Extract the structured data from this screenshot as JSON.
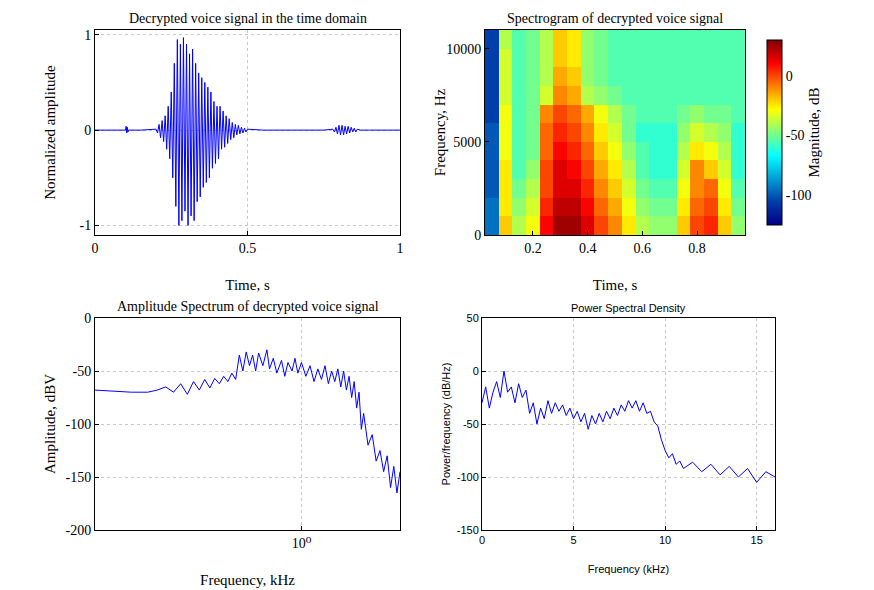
{
  "chart_data": [
    {
      "type": "line",
      "title": "Decrypted voice signal in the time domain",
      "x_label": "Time, s",
      "y_label": "Normalized amplitude",
      "xlim": [
        0,
        1
      ],
      "xticks": [
        0,
        0.5,
        1
      ],
      "ylim": [
        -1.1,
        1.05
      ],
      "yticks": [
        -1,
        0,
        1
      ],
      "grid": true,
      "series": [
        {
          "color": "#0000ff",
          "x": [
            0,
            0.05,
            0.1,
            0.102,
            0.104,
            0.106,
            0.108,
            0.11,
            0.15,
            0.2,
            0.205,
            0.21,
            0.215,
            0.22,
            0.225,
            0.23,
            0.235,
            0.24,
            0.245,
            0.25,
            0.255,
            0.26,
            0.265,
            0.27,
            0.275,
            0.28,
            0.285,
            0.29,
            0.295,
            0.3,
            0.305,
            0.31,
            0.315,
            0.32,
            0.325,
            0.33,
            0.335,
            0.34,
            0.345,
            0.35,
            0.355,
            0.36,
            0.365,
            0.37,
            0.375,
            0.38,
            0.385,
            0.39,
            0.395,
            0.4,
            0.405,
            0.41,
            0.415,
            0.42,
            0.425,
            0.43,
            0.435,
            0.44,
            0.445,
            0.45,
            0.455,
            0.46,
            0.465,
            0.47,
            0.475,
            0.48,
            0.485,
            0.49,
            0.495,
            0.5,
            0.55,
            0.6,
            0.65,
            0.7,
            0.75,
            0.78,
            0.785,
            0.79,
            0.795,
            0.8,
            0.805,
            0.81,
            0.815,
            0.82,
            0.825,
            0.83,
            0.835,
            0.84,
            0.845,
            0.85,
            0.855,
            0.86,
            0.87,
            0.9,
            0.95,
            1.0
          ],
          "values": [
            0,
            0,
            0,
            0.04,
            -0.03,
            0.03,
            -0.02,
            0,
            0,
            0.01,
            -0.03,
            0.06,
            -0.08,
            0.1,
            -0.12,
            0.15,
            -0.2,
            0.25,
            -0.3,
            0.4,
            -0.5,
            0.7,
            -0.8,
            0.95,
            -1.0,
            0.9,
            -0.95,
            0.97,
            -0.85,
            0.9,
            -1.0,
            0.8,
            -0.9,
            0.85,
            -0.95,
            0.7,
            -0.75,
            0.6,
            -0.7,
            0.55,
            -0.6,
            0.5,
            -0.55,
            0.45,
            -0.5,
            0.4,
            -0.4,
            0.3,
            -0.35,
            0.25,
            -0.3,
            0.25,
            -0.2,
            0.2,
            -0.18,
            0.15,
            -0.14,
            0.12,
            -0.1,
            0.08,
            -0.08,
            0.06,
            -0.05,
            0.05,
            -0.04,
            0.03,
            -0.03,
            0.02,
            -0.02,
            0.01,
            0,
            0,
            0,
            0,
            0,
            0.01,
            -0.02,
            0.03,
            -0.04,
            0.05,
            -0.05,
            0.05,
            -0.05,
            0.04,
            -0.04,
            0.04,
            -0.03,
            0.03,
            -0.02,
            0.02,
            -0.02,
            0.01,
            0,
            0,
            0,
            0
          ]
        }
      ]
    },
    {
      "type": "heatmap",
      "title": "Spectrogram of decrypted voice signal",
      "x_label": "Time, s",
      "y_label": "Frequency, Hz",
      "xlim": [
        0.025,
        0.975
      ],
      "xticks": [
        0.2,
        0.4,
        0.6,
        0.8
      ],
      "ylim": [
        0,
        11000
      ],
      "yticks": [
        0,
        5000,
        10000
      ],
      "grid": false,
      "colorbar_title": "Magnitude, dB",
      "zlim": [
        -125,
        30
      ],
      "zticks": [
        -100,
        -50,
        0
      ],
      "x": [
        0.05,
        0.1,
        0.15,
        0.2,
        0.25,
        0.3,
        0.35,
        0.4,
        0.45,
        0.5,
        0.55,
        0.6,
        0.65,
        0.7,
        0.75,
        0.8,
        0.85,
        0.9,
        0.95
      ],
      "y": [
        500,
        1500,
        2500,
        3500,
        4500,
        5500,
        6500,
        7500,
        8500,
        9500,
        10500
      ],
      "z": [
        [
          -95,
          -20,
          -40,
          -30,
          10,
          25,
          25,
          15,
          0,
          -10,
          -25,
          -40,
          -45,
          -45,
          -20,
          0,
          5,
          -20,
          -45
        ],
        [
          -95,
          -25,
          -45,
          -35,
          5,
          20,
          20,
          10,
          -5,
          -15,
          -30,
          -45,
          -50,
          -50,
          -25,
          -5,
          0,
          -25,
          -50
        ],
        [
          -100,
          -25,
          -50,
          -40,
          0,
          15,
          15,
          5,
          -10,
          -20,
          -35,
          -50,
          -55,
          -55,
          -30,
          -10,
          -5,
          -30,
          -55
        ],
        [
          -100,
          -25,
          -55,
          -45,
          0,
          15,
          10,
          0,
          -15,
          -25,
          -40,
          -55,
          -60,
          -60,
          -35,
          -10,
          -20,
          -35,
          -60
        ],
        [
          -100,
          -30,
          -55,
          -50,
          -5,
          10,
          5,
          -5,
          -20,
          -30,
          -45,
          -55,
          -60,
          -60,
          -40,
          -25,
          -30,
          -40,
          -60
        ],
        [
          -100,
          -30,
          -55,
          -50,
          -5,
          5,
          0,
          -10,
          -25,
          -35,
          -50,
          -60,
          -60,
          -60,
          -45,
          -35,
          -40,
          -45,
          -60
        ],
        [
          -105,
          -30,
          -55,
          -50,
          -10,
          0,
          -5,
          -15,
          -30,
          -40,
          -50,
          -55,
          -55,
          -55,
          -50,
          -45,
          -50,
          -50,
          -55
        ],
        [
          -105,
          -35,
          -55,
          -50,
          -35,
          -10,
          -15,
          -40,
          -45,
          -50,
          -55,
          -55,
          -55,
          -55,
          -55,
          -55,
          -55,
          -55,
          -55
        ],
        [
          -105,
          -35,
          -55,
          -50,
          -40,
          -15,
          -20,
          -45,
          -50,
          -55,
          -55,
          -55,
          -55,
          -55,
          -55,
          -55,
          -55,
          -55,
          -55
        ],
        [
          -105,
          -35,
          -55,
          -50,
          -40,
          -20,
          -25,
          -45,
          -50,
          -55,
          -55,
          -55,
          -55,
          -55,
          -55,
          -55,
          -55,
          -55,
          -55
        ],
        [
          -105,
          -40,
          -55,
          -50,
          -40,
          -20,
          -25,
          -45,
          -50,
          -55,
          -55,
          -55,
          -55,
          -55,
          -55,
          -55,
          -55,
          -55,
          -55
        ]
      ]
    },
    {
      "type": "line",
      "title": "Amplitude Spectrum of decrypted voice signal",
      "x_label": "Frequency, kHz",
      "y_label": "Amplitude, dBV",
      "log": "x",
      "xlim": [
        0.1,
        3
      ],
      "xticks": [
        {
          "value": 1,
          "label": "10⁰"
        }
      ],
      "ylim": [
        -200,
        0
      ],
      "yticks": [
        -200,
        -150,
        -100,
        -50,
        0
      ],
      "grid": true,
      "series": [
        {
          "color": "#0000ff",
          "x": [
            0.1,
            0.12,
            0.15,
            0.18,
            0.2,
            0.22,
            0.24,
            0.26,
            0.28,
            0.3,
            0.32,
            0.34,
            0.36,
            0.38,
            0.4,
            0.42,
            0.44,
            0.46,
            0.48,
            0.5,
            0.52,
            0.54,
            0.56,
            0.58,
            0.6,
            0.62,
            0.65,
            0.68,
            0.7,
            0.73,
            0.76,
            0.8,
            0.83,
            0.86,
            0.9,
            0.93,
            0.96,
            1.0,
            1.05,
            1.1,
            1.15,
            1.2,
            1.25,
            1.3,
            1.35,
            1.4,
            1.45,
            1.5,
            1.55,
            1.6,
            1.65,
            1.7,
            1.75,
            1.8,
            1.85,
            1.9,
            1.95,
            2.0,
            2.1,
            2.2,
            2.3,
            2.4,
            2.5,
            2.6,
            2.7,
            2.8,
            2.9,
            3.0
          ],
          "values": [
            -68,
            -69,
            -70,
            -70,
            -68,
            -65,
            -70,
            -62,
            -72,
            -60,
            -68,
            -58,
            -66,
            -57,
            -62,
            -55,
            -60,
            -52,
            -58,
            -35,
            -50,
            -32,
            -45,
            -35,
            -50,
            -33,
            -45,
            -30,
            -48,
            -38,
            -52,
            -40,
            -55,
            -42,
            -50,
            -38,
            -52,
            -42,
            -55,
            -45,
            -60,
            -48,
            -58,
            -45,
            -62,
            -50,
            -60,
            -48,
            -65,
            -50,
            -68,
            -55,
            -75,
            -60,
            -85,
            -70,
            -105,
            -90,
            -120,
            -110,
            -135,
            -125,
            -145,
            -130,
            -160,
            -140,
            -165,
            -145
          ]
        }
      ]
    },
    {
      "type": "line",
      "title": "Power Spectral Density",
      "x_label": "Frequency (kHz)",
      "y_label": "Power/frequency (dB/Hz)",
      "xlim": [
        0,
        16
      ],
      "xticks": [
        0,
        5,
        10,
        15
      ],
      "ylim": [
        -150,
        50
      ],
      "yticks": [
        -150,
        -100,
        -50,
        0,
        50
      ],
      "grid": true,
      "series": [
        {
          "color": "#0000ff",
          "x": [
            0,
            0.2,
            0.4,
            0.6,
            0.8,
            1,
            1.2,
            1.4,
            1.6,
            1.8,
            2,
            2.2,
            2.4,
            2.6,
            2.8,
            3,
            3.2,
            3.4,
            3.6,
            3.8,
            4,
            4.2,
            4.4,
            4.6,
            4.8,
            5,
            5.2,
            5.4,
            5.6,
            5.8,
            6,
            6.2,
            6.4,
            6.6,
            6.8,
            7,
            7.2,
            7.4,
            7.6,
            7.8,
            8,
            8.2,
            8.4,
            8.6,
            8.8,
            9,
            9.2,
            9.4,
            9.6,
            9.8,
            10,
            10.2,
            10.4,
            10.6,
            10.8,
            11,
            11.5,
            12,
            12.5,
            13,
            13.5,
            14,
            14.5,
            15,
            15.5,
            16
          ],
          "values": [
            -30,
            -15,
            -35,
            -20,
            -10,
            -25,
            0,
            -20,
            -15,
            -30,
            -12,
            -25,
            -18,
            -40,
            -30,
            -50,
            -35,
            -45,
            -28,
            -40,
            -30,
            -38,
            -32,
            -42,
            -35,
            -45,
            -38,
            -48,
            -40,
            -55,
            -42,
            -50,
            -40,
            -48,
            -38,
            -45,
            -35,
            -42,
            -32,
            -38,
            -28,
            -35,
            -28,
            -38,
            -30,
            -40,
            -38,
            -48,
            -52,
            -65,
            -75,
            -82,
            -78,
            -88,
            -85,
            -92,
            -86,
            -95,
            -88,
            -98,
            -90,
            -100,
            -92,
            -105,
            -95,
            -100
          ]
        }
      ]
    }
  ]
}
